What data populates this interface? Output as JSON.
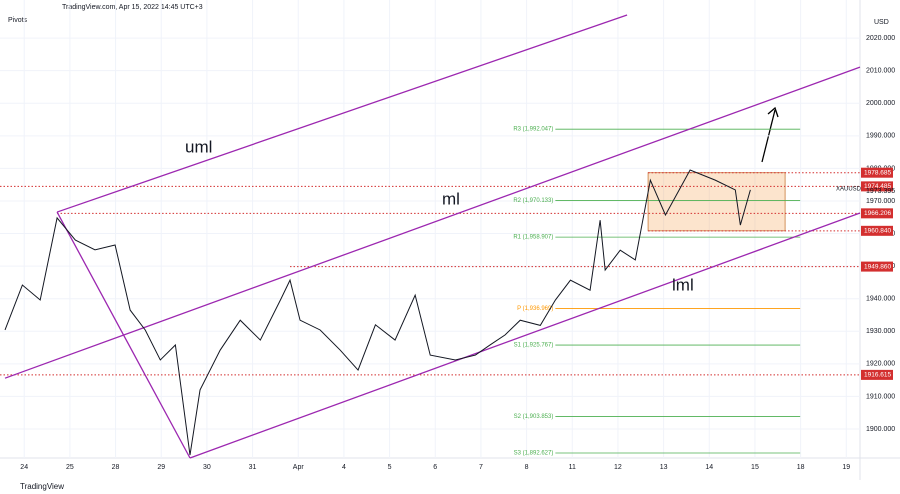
{
  "chart_data": {
    "type": "line",
    "header": "TradingView.com, Apr 15, 2022 14:45 UTC+3",
    "indicator": "Pivots",
    "currency": "USD",
    "footer": "TradingView",
    "symbol": "XAUUSD",
    "current": {
      "value": 1973.395,
      "label": "1973.395"
    },
    "xlim": [
      -0.53,
      18.3
    ],
    "ylim": [
      1891.1,
      2031.7
    ],
    "xticks": [
      {
        "value": 0,
        "label": "24"
      },
      {
        "value": 1,
        "label": "25"
      },
      {
        "value": 2,
        "label": "28"
      },
      {
        "value": 3,
        "label": "29"
      },
      {
        "value": 4,
        "label": "30"
      },
      {
        "value": 5,
        "label": "31"
      },
      {
        "value": 6,
        "label": "Apr"
      },
      {
        "value": 7,
        "label": "4"
      },
      {
        "value": 8,
        "label": "5"
      },
      {
        "value": 9,
        "label": "6"
      },
      {
        "value": 10,
        "label": "7"
      },
      {
        "value": 11,
        "label": "8"
      },
      {
        "value": 12,
        "label": "11"
      },
      {
        "value": 13,
        "label": "12"
      },
      {
        "value": 14,
        "label": "13"
      },
      {
        "value": 15,
        "label": "14"
      },
      {
        "value": 16,
        "label": "15"
      },
      {
        "value": 17,
        "label": "18"
      },
      {
        "value": 18,
        "label": "19"
      }
    ],
    "yticks": [
      {
        "value": 1900,
        "label": "1900.000"
      },
      {
        "value": 1910,
        "label": "1910.000"
      },
      {
        "value": 1920,
        "label": "1920.000"
      },
      {
        "value": 1930,
        "label": "1930.000"
      },
      {
        "value": 1940,
        "label": "1940.000"
      },
      {
        "value": 1950,
        "label": "1950.000"
      },
      {
        "value": 1960,
        "label": "1960.000"
      },
      {
        "value": 1970,
        "label": "1970.000"
      },
      {
        "value": 1980,
        "label": "1980.000"
      },
      {
        "value": 1990,
        "label": "1990.000"
      },
      {
        "value": 2000,
        "label": "2000.000"
      },
      {
        "value": 2010,
        "label": "2010.000"
      },
      {
        "value": 2020,
        "label": "2020.000"
      }
    ],
    "series": [
      {
        "name": "XAUUSD",
        "color": "#131722",
        "x": [
          -0.42,
          -0.04,
          0.35,
          0.72,
          1.12,
          1.55,
          1.99,
          2.32,
          2.65,
          2.98,
          3.31,
          3.63,
          3.85,
          4.29,
          4.73,
          5.17,
          5.61,
          5.82,
          6.04,
          6.48,
          6.92,
          7.31,
          7.69,
          8.12,
          8.56,
          8.89,
          9.44,
          9.88,
          10.2,
          10.53,
          10.86,
          11.3,
          11.63,
          11.96,
          12.39,
          12.61,
          12.72,
          13.05,
          13.38,
          13.71,
          14.04,
          14.58,
          15.13,
          15.57,
          15.68,
          15.9
        ],
        "values": [
          1930.4,
          1944.2,
          1939.6,
          1964.8,
          1958,
          1955,
          1956.5,
          1936.5,
          1930.4,
          1921.2,
          1925.8,
          1892,
          1912,
          1924.2,
          1933.4,
          1927.3,
          1939.6,
          1945.7,
          1933.4,
          1930.4,
          1924.2,
          1918.1,
          1932,
          1927.3,
          1941.1,
          1922.7,
          1921.2,
          1922.7,
          1925.8,
          1928.9,
          1933.4,
          1931.8,
          1939.6,
          1945.7,
          1942.6,
          1964.1,
          1948.8,
          1954.9,
          1951.9,
          1976.4,
          1965.7,
          1979.5,
          1976.4,
          1973.4,
          1962.6,
          1973.4
        ]
      }
    ],
    "levels": [
      {
        "value": 1978.685,
        "label": "1978.685",
        "start": 13.66
      },
      {
        "value": 1974.485,
        "label": "1974.485",
        "start": -0.53
      },
      {
        "value": 1966.206,
        "label": "1966.206",
        "start": 0.72
      },
      {
        "value": 1960.84,
        "label": "1960.840",
        "start": 13.66
      },
      {
        "value": 1949.86,
        "label": "1949.860",
        "start": 5.82
      },
      {
        "value": 1916.615,
        "label": "1916.615",
        "start": -0.53
      }
    ],
    "pivot_x": [
      11.63,
      16.99
    ],
    "pivots": [
      {
        "label": "R3 (1,992.047)",
        "value": 1992.047,
        "color": "#4caf50"
      },
      {
        "label": "R2 (1,970.133)",
        "value": 1970.133,
        "color": "#4caf50"
      },
      {
        "label": "R1 (1,958.907)",
        "value": 1958.907,
        "color": "#4caf50"
      },
      {
        "label": "P (1,936.969)",
        "value": 1936.969,
        "color": "#ff9800"
      },
      {
        "label": "S1 (1,925.767)",
        "value": 1925.767,
        "color": "#4caf50"
      },
      {
        "label": "S2 (1,903.853)",
        "value": 1903.853,
        "color": "#4caf50"
      },
      {
        "label": "S3 (1,892.627)",
        "value": 1892.627,
        "color": "#4caf50"
      }
    ],
    "box": {
      "x": [
        13.66,
        16.66
      ],
      "values": [
        1978.685,
        1960.84
      ]
    },
    "trend_lines": [
      {
        "name": "uml",
        "x": [
          0.72,
          13.2
        ],
        "values": [
          1966.6,
          2027.1
        ]
      },
      {
        "name": "ml",
        "x": [
          -0.42,
          18.3
        ],
        "values": [
          1915.6,
          2011.1
        ]
      },
      {
        "name": "lml",
        "x": [
          3.63,
          18.3
        ],
        "values": [
          1891.1,
          1966.3
        ]
      },
      {
        "x": [
          0.72,
          3.63
        ],
        "values": [
          1966.6,
          1891.1
        ]
      }
    ]
  }
}
